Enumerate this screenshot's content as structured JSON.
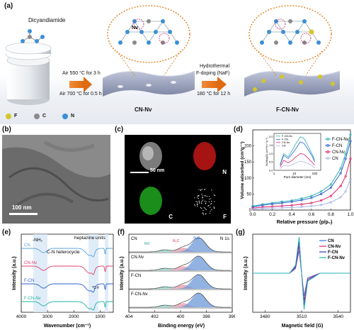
{
  "panel_a": {
    "letter": "(a)",
    "precursor": "Dicyandiamide",
    "step1_line1": "Air 550 °C for 3 h",
    "step1_line2": "Air 700 °C for 0.5 h",
    "product1": "CN-Nv",
    "nv_label": "Nv",
    "step2_line1": "Hydrothermal",
    "step2_line2": "F-doping (NaF)",
    "step2_line3": "180 °C for 12 h",
    "product2": "F-CN-Nv",
    "legend": [
      {
        "symbol": "F",
        "color": "#d4c62a"
      },
      {
        "symbol": "C",
        "color": "#8a8a8a"
      },
      {
        "symbol": "N",
        "color": "#3a8fd6"
      }
    ]
  },
  "panel_b": {
    "letter": "(b)",
    "scale": "100 nm"
  },
  "panel_c": {
    "letter": "(c)",
    "scale": "50 nm",
    "tiles": [
      "",
      "N",
      "C",
      "F"
    ],
    "tile_colors": [
      "#bfbfbf",
      "#d01818",
      "#20b020",
      "#ffffff"
    ]
  },
  "panel_d": {
    "letter": "(d)",
    "ylabel": "Volume adsorbed (cm³g⁻¹)",
    "xlabel": "Relative pressure (p/p₀)",
    "inset_xlabel": "Pore diameter (nm)",
    "inset_ylabel": "dV/dlog(D) (cm³nm⁻¹g⁻¹)",
    "legend": [
      "F-CN-Nv",
      "F-CN",
      "CN-Nv",
      "CN"
    ],
    "inset_legend": [
      "F-CN-Nv",
      "F-CN",
      "CN-Nv",
      "CN"
    ],
    "colors": {
      "F-CN-Nv": "#2bb3b0",
      "F-CN": "#2d5fd0",
      "CN-Nv": "#e0206a",
      "CN": "#a9b7e6"
    }
  },
  "panel_e": {
    "letter": "(e)",
    "ylabel": "Intensity (a.u.)",
    "xlabel": "Wavenumber (cm⁻¹)",
    "ann_nh2": "-NH₂",
    "ann_heterocycle": "C-N heterocycle",
    "ann_heptazine": "heptazine units",
    "ann_cf": "*C-F",
    "series": [
      "CN",
      "CN-Nv",
      "F-CN",
      "F-CN-Nv"
    ]
  },
  "panel_f": {
    "letter": "(f)",
    "ylabel": "Intensity (a.u.)",
    "xlabel": "Binding energy (eV)",
    "title": "N 1s",
    "labels": [
      "CN",
      "CN-Nv",
      "F-CN",
      "F-CN-Nv"
    ],
    "ann_nh": "NH",
    "ann_n3c": "N₃C",
    "ann_n2c": "N₂C"
  },
  "panel_g": {
    "letter": "(g)",
    "ylabel": "Intensity (a.u.)",
    "xlabel": "Magnetic field (G)",
    "legend": [
      "CN",
      "CN-Nv",
      "F-CN",
      "F-CN-Nv"
    ]
  },
  "chart_data": [
    {
      "type": "line",
      "panel": "d",
      "xlabel": "Relative pressure (p/p₀)",
      "ylabel": "Volume adsorbed (cm³g⁻¹)",
      "xlim": [
        0.0,
        1.0
      ],
      "ylim": [
        0,
        250
      ],
      "xticks": [
        "0.0",
        "0.2",
        "0.4",
        "0.6",
        "0.8",
        "1.0"
      ],
      "yticks": [
        "0",
        "50",
        "100",
        "150",
        "200"
      ],
      "x": [
        0.0,
        0.1,
        0.2,
        0.3,
        0.4,
        0.5,
        0.6,
        0.7,
        0.8,
        0.9,
        0.95,
        1.0
      ],
      "series": [
        {
          "name": "F-CN-Nv",
          "values": [
            12,
            18,
            22,
            26,
            30,
            36,
            44,
            58,
            80,
            130,
            175,
            235
          ]
        },
        {
          "name": "F-CN",
          "values": [
            10,
            15,
            19,
            22,
            26,
            31,
            38,
            50,
            70,
            115,
            160,
            215
          ]
        },
        {
          "name": "CN-Nv",
          "values": [
            6,
            9,
            11,
            13,
            15,
            18,
            22,
            30,
            44,
            75,
            105,
            160
          ]
        },
        {
          "name": "CN",
          "values": [
            3,
            5,
            6,
            7,
            8,
            10,
            12,
            16,
            24,
            40,
            58,
            95
          ]
        }
      ],
      "inset": {
        "xlabel": "Pore diameter (nm)",
        "xscale": "log",
        "xticks": [
          "1",
          "10",
          "100"
        ],
        "yticks": [
          "0.0",
          "0.5",
          "1.0",
          "1.5",
          "2.0"
        ],
        "x": [
          2,
          3,
          5,
          8,
          12,
          20,
          30,
          50,
          80,
          100
        ],
        "series": [
          {
            "name": "F-CN-Nv",
            "values": [
              0.35,
              1.0,
              0.8,
              1.2,
              1.6,
              2.0,
              1.9,
              1.4,
              0.9,
              0.6
            ]
          },
          {
            "name": "F-CN",
            "values": [
              0.3,
              0.9,
              0.7,
              1.0,
              1.3,
              1.7,
              1.6,
              1.2,
              0.8,
              0.5
            ]
          },
          {
            "name": "CN-Nv",
            "values": [
              0.2,
              0.6,
              0.45,
              0.6,
              0.8,
              1.0,
              0.95,
              0.7,
              0.45,
              0.3
            ]
          },
          {
            "name": "CN",
            "values": [
              0.1,
              0.3,
              0.25,
              0.35,
              0.45,
              0.55,
              0.5,
              0.4,
              0.25,
              0.15
            ]
          }
        ]
      }
    },
    {
      "type": "line",
      "panel": "e",
      "xlabel": "Wavenumber (cm⁻¹)",
      "ylabel": "Intensity (a.u.)",
      "xlim": [
        4000,
        500
      ],
      "xticks": [
        "4000",
        "3000",
        "2000",
        "1000"
      ],
      "series": [
        {
          "name": "CN"
        },
        {
          "name": "CN-Nv"
        },
        {
          "name": "F-CN"
        },
        {
          "name": "F-CN-Nv"
        }
      ]
    },
    {
      "type": "area",
      "panel": "f",
      "xlabel": "Binding energy (eV)",
      "ylabel": "Intensity (a.u.)",
      "xlim": [
        404,
        396
      ],
      "xticks": [
        "404",
        "402",
        "400",
        "398",
        "396"
      ],
      "components": [
        "NH",
        "N₃C",
        "N₂C"
      ],
      "series": [
        {
          "name": "CN"
        },
        {
          "name": "CN-Nv"
        },
        {
          "name": "F-CN"
        },
        {
          "name": "F-CN-Nv"
        }
      ]
    },
    {
      "type": "line",
      "panel": "g",
      "xlabel": "Magnetic field (G)",
      "ylabel": "Intensity (a.u.)",
      "xlim": [
        3470,
        3550
      ],
      "xticks": [
        "3480",
        "3510",
        "3540"
      ],
      "series": [
        {
          "name": "CN",
          "values": [
            0,
            0,
            0,
            0.2,
            1.0,
            -1.0,
            -0.2,
            0,
            0
          ]
        },
        {
          "name": "CN-Nv",
          "values": [
            0,
            0,
            0,
            0.25,
            1.2,
            -1.2,
            -0.25,
            0,
            0
          ]
        },
        {
          "name": "F-CN",
          "values": [
            0,
            0,
            0,
            0.3,
            1.4,
            -1.4,
            -0.3,
            0,
            0
          ]
        },
        {
          "name": "F-CN-Nv",
          "values": [
            0,
            0,
            0,
            0.35,
            1.6,
            -1.6,
            -0.35,
            0,
            0
          ]
        }
      ],
      "x": [
        3470,
        3490,
        3500,
        3505,
        3508,
        3512,
        3515,
        3525,
        3550
      ]
    }
  ]
}
